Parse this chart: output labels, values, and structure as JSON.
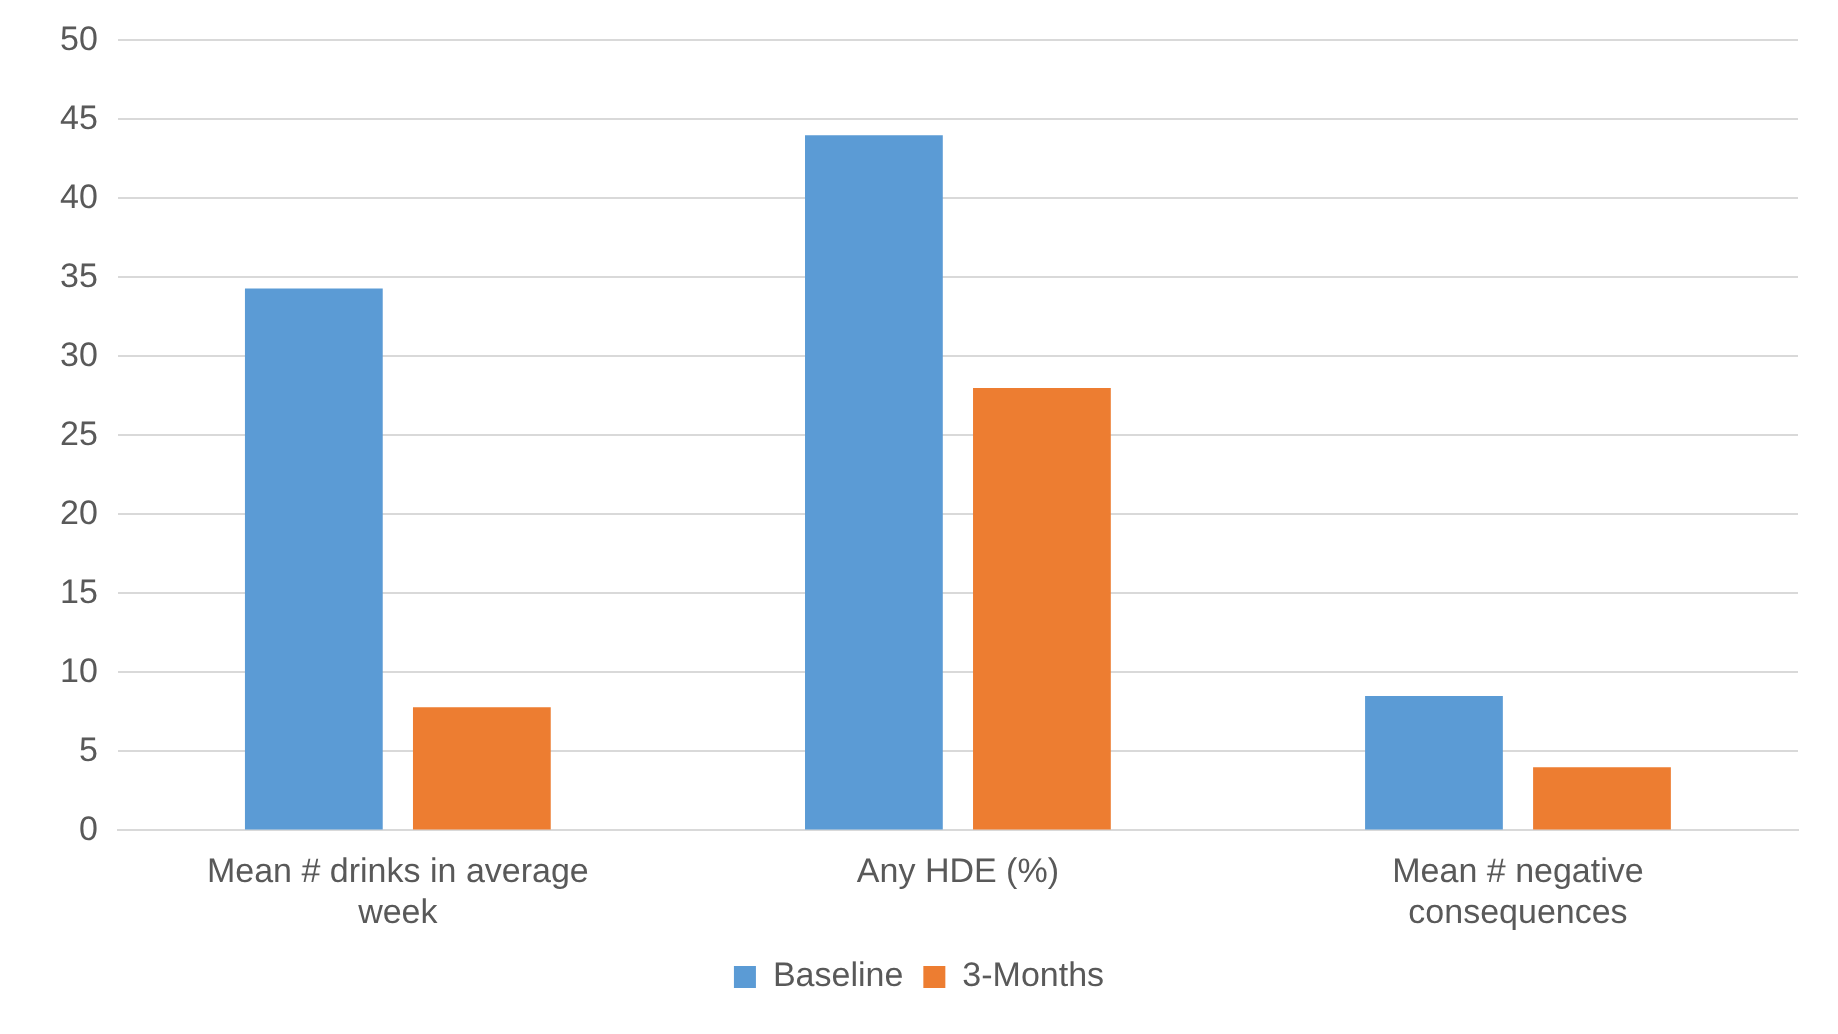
{
  "chart_data": {
    "type": "bar",
    "categories": [
      "Mean # drinks in average week",
      "Any HDE (%)",
      "Mean # negative consequences"
    ],
    "series": [
      {
        "name": "Baseline",
        "color": "#5b9bd5",
        "values": [
          34.3,
          44,
          8.5
        ]
      },
      {
        "name": "3-Months",
        "color": "#ed7d31",
        "values": [
          7.8,
          28,
          4
        ]
      }
    ],
    "ylim": [
      0,
      50
    ],
    "yticks": [
      0,
      5,
      10,
      15,
      20,
      25,
      30,
      35,
      40,
      45,
      50
    ],
    "grid": "y",
    "legend": "bottom"
  }
}
